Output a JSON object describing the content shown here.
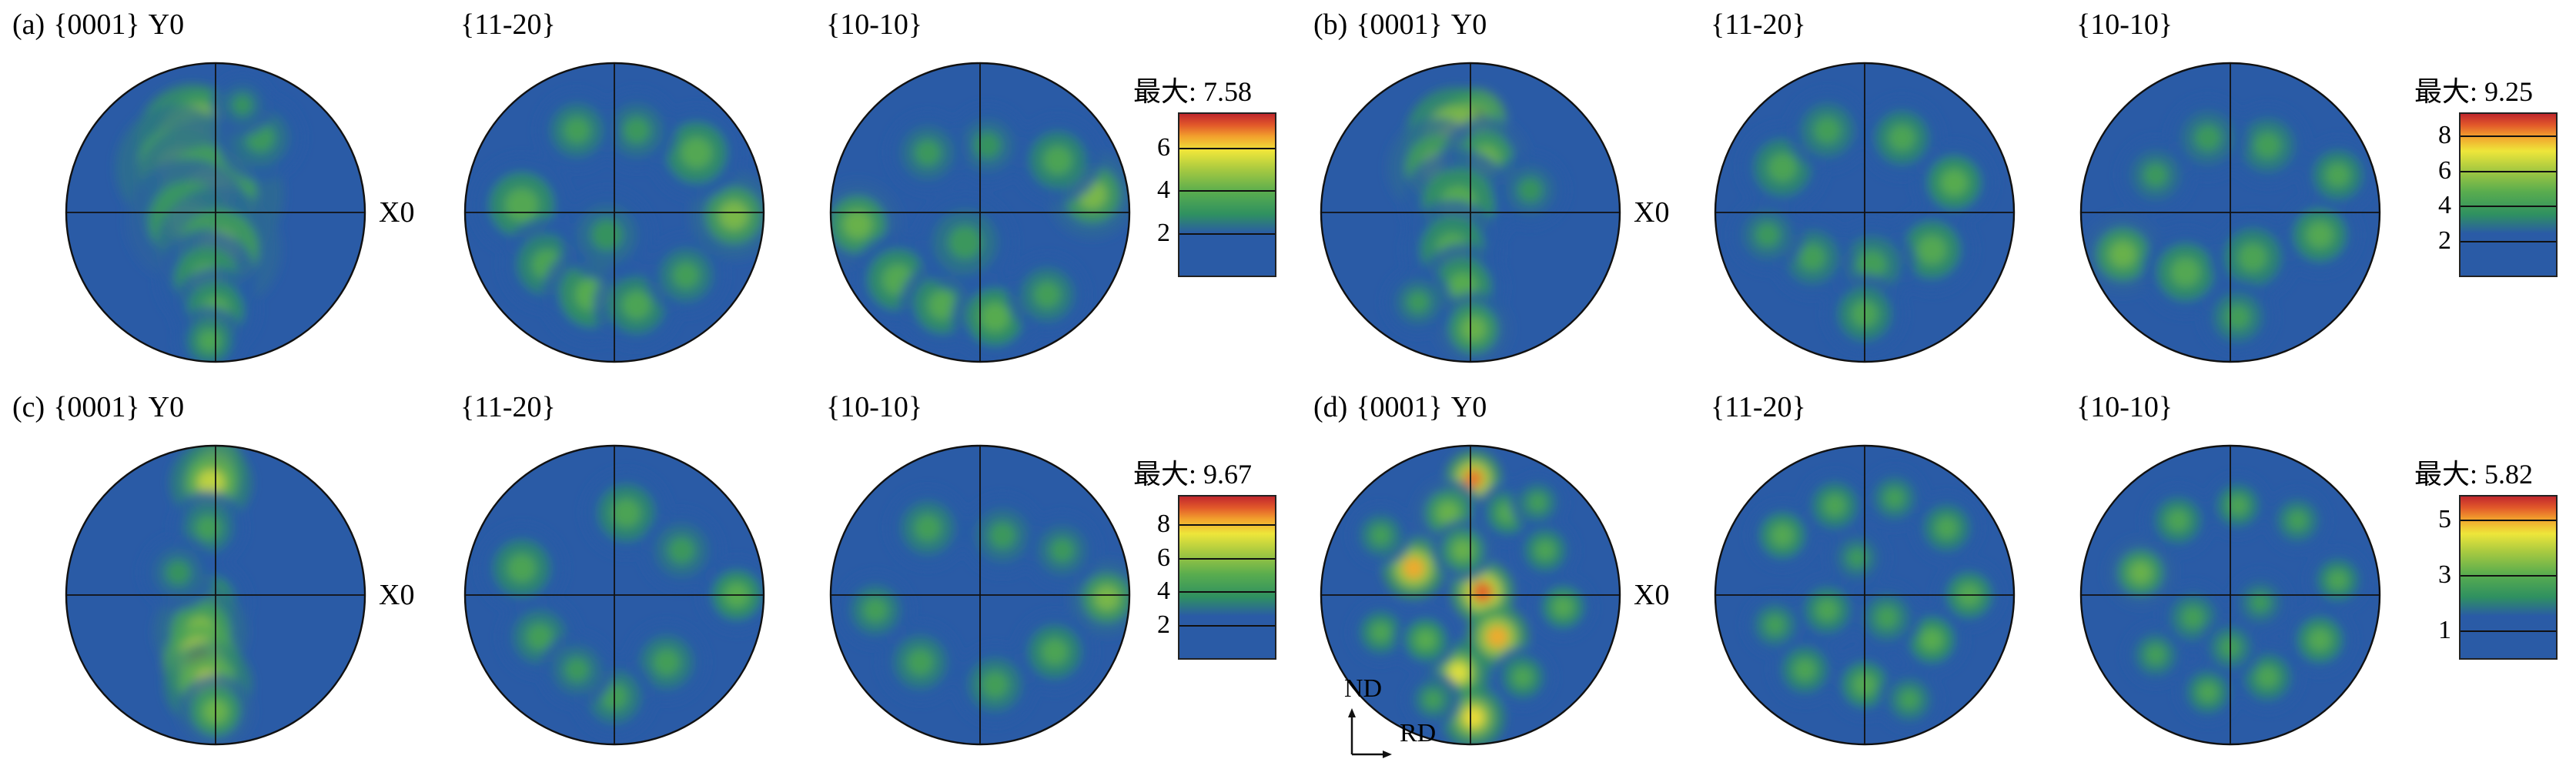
{
  "chart_data": {
    "type": "heatmap",
    "subtype": "pole-figures",
    "background": "#2a5ba6",
    "colormap": [
      [
        0.0,
        "#2a5ba6"
      ],
      [
        0.26,
        "#2a5ba6"
      ],
      [
        0.38,
        "#2f9160"
      ],
      [
        0.52,
        "#5aad4e"
      ],
      [
        0.66,
        "#a9ca40"
      ],
      [
        0.77,
        "#eee63a"
      ],
      [
        0.86,
        "#f2a12d"
      ],
      [
        0.93,
        "#e2592a"
      ],
      [
        1.0,
        "#c1272d"
      ]
    ],
    "axes_indicator": {
      "vertical": "ND",
      "horizontal": "RD"
    },
    "panels": [
      {
        "label": "(a)",
        "y_axis_label": "Y0",
        "x_axis_label": "X0",
        "max_intensity": 7.58,
        "colorbar": {
          "max_label": "最大: 7.58",
          "max": 7.58,
          "ticks": [
            6,
            4,
            2
          ]
        },
        "figures": [
          {
            "title": "{0001}",
            "hotspots": [
              [
                -0.1,
                -0.6,
                0.1,
                1.0
              ],
              [
                -0.15,
                -0.48,
                0.18,
                0.8
              ],
              [
                -0.25,
                -0.3,
                0.2,
                0.62
              ],
              [
                -0.05,
                -0.12,
                0.24,
                0.6
              ],
              [
                -0.18,
                0.06,
                0.2,
                0.55
              ],
              [
                0.02,
                0.25,
                0.2,
                0.58
              ],
              [
                -0.06,
                0.45,
                0.16,
                0.52
              ],
              [
                0.0,
                0.66,
                0.14,
                0.5
              ],
              [
                -0.04,
                0.86,
                0.11,
                0.48
              ],
              [
                0.3,
                -0.5,
                0.14,
                0.42
              ],
              [
                0.18,
                -0.72,
                0.1,
                0.4
              ]
            ]
          },
          {
            "title": "{11-20}",
            "hotspots": [
              [
                -0.62,
                -0.05,
                0.16,
                0.5
              ],
              [
                -0.45,
                0.35,
                0.15,
                0.48
              ],
              [
                -0.15,
                0.55,
                0.16,
                0.52
              ],
              [
                0.15,
                0.62,
                0.14,
                0.48
              ],
              [
                0.48,
                0.42,
                0.13,
                0.45
              ],
              [
                0.8,
                0.02,
                0.14,
                0.58
              ],
              [
                0.55,
                -0.4,
                0.15,
                0.5
              ],
              [
                0.15,
                -0.55,
                0.13,
                0.42
              ],
              [
                -0.25,
                -0.55,
                0.13,
                0.45
              ],
              [
                -0.05,
                0.15,
                0.15,
                0.4
              ]
            ]
          },
          {
            "title": "{10-10}",
            "hotspots": [
              [
                -0.82,
                0.08,
                0.14,
                0.55
              ],
              [
                -0.55,
                0.45,
                0.15,
                0.5
              ],
              [
                -0.25,
                0.62,
                0.14,
                0.5
              ],
              [
                0.1,
                0.7,
                0.14,
                0.52
              ],
              [
                0.45,
                0.55,
                0.13,
                0.45
              ],
              [
                0.75,
                -0.12,
                0.14,
                0.58
              ],
              [
                0.52,
                -0.35,
                0.14,
                0.48
              ],
              [
                0.05,
                -0.45,
                0.13,
                0.4
              ],
              [
                -0.35,
                -0.4,
                0.13,
                0.42
              ],
              [
                -0.1,
                0.2,
                0.16,
                0.42
              ]
            ]
          }
        ]
      },
      {
        "label": "(b)",
        "y_axis_label": "Y0",
        "x_axis_label": "X0",
        "max_intensity": 9.25,
        "colorbar": {
          "max_label": "最大: 9.25",
          "max": 9.25,
          "ticks": [
            8,
            6,
            4,
            2
          ]
        },
        "figures": [
          {
            "title": "{0001}",
            "hotspots": [
              [
                0.03,
                -0.62,
                0.1,
                1.0
              ],
              [
                -0.1,
                -0.5,
                0.16,
                0.78
              ],
              [
                -0.22,
                -0.3,
                0.16,
                0.58
              ],
              [
                0.1,
                -0.35,
                0.14,
                0.55
              ],
              [
                -0.08,
                -0.05,
                0.18,
                0.52
              ],
              [
                -0.12,
                0.25,
                0.16,
                0.5
              ],
              [
                -0.05,
                0.5,
                0.14,
                0.52
              ],
              [
                0.02,
                0.78,
                0.12,
                0.55
              ],
              [
                -0.35,
                0.6,
                0.11,
                0.42
              ],
              [
                0.4,
                -0.15,
                0.12,
                0.4
              ]
            ]
          },
          {
            "title": "{11-20}",
            "hotspots": [
              [
                -0.55,
                -0.3,
                0.14,
                0.48
              ],
              [
                -0.25,
                -0.55,
                0.13,
                0.45
              ],
              [
                0.25,
                -0.5,
                0.13,
                0.48
              ],
              [
                0.6,
                -0.2,
                0.13,
                0.52
              ],
              [
                0.45,
                0.25,
                0.14,
                0.5
              ],
              [
                0.05,
                0.35,
                0.14,
                0.45
              ],
              [
                -0.35,
                0.3,
                0.13,
                0.45
              ],
              [
                0.0,
                0.68,
                0.13,
                0.48
              ],
              [
                -0.65,
                0.15,
                0.12,
                0.42
              ]
            ]
          },
          {
            "title": "{10-10}",
            "hotspots": [
              [
                -0.72,
                0.28,
                0.13,
                0.55
              ],
              [
                -0.3,
                0.4,
                0.14,
                0.5
              ],
              [
                0.15,
                0.3,
                0.14,
                0.48
              ],
              [
                0.6,
                0.15,
                0.13,
                0.5
              ],
              [
                0.72,
                -0.25,
                0.12,
                0.48
              ],
              [
                0.25,
                -0.45,
                0.13,
                0.45
              ],
              [
                -0.15,
                -0.5,
                0.13,
                0.42
              ],
              [
                -0.5,
                -0.25,
                0.12,
                0.42
              ],
              [
                0.05,
                0.7,
                0.12,
                0.45
              ]
            ]
          }
        ]
      },
      {
        "label": "(c)",
        "y_axis_label": "Y0",
        "x_axis_label": "X0",
        "max_intensity": 9.67,
        "colorbar": {
          "max_label": "最大: 9.67",
          "max": 9.67,
          "ticks": [
            8,
            6,
            4,
            2
          ]
        },
        "figures": [
          {
            "title": "{0001}",
            "hotspots": [
              [
                0.0,
                -0.86,
                0.09,
                0.95
              ],
              [
                -0.03,
                -0.75,
                0.13,
                0.7
              ],
              [
                -0.05,
                -0.45,
                0.12,
                0.45
              ],
              [
                -0.06,
                0.05,
                0.14,
                0.5
              ],
              [
                -0.1,
                0.25,
                0.15,
                0.6
              ],
              [
                -0.1,
                0.45,
                0.12,
                0.95
              ],
              [
                -0.05,
                0.6,
                0.14,
                0.7
              ],
              [
                0.0,
                0.78,
                0.12,
                0.55
              ],
              [
                -0.25,
                -0.15,
                0.12,
                0.4
              ]
            ]
          },
          {
            "title": "{11-20}",
            "hotspots": [
              [
                -0.62,
                -0.18,
                0.14,
                0.48
              ],
              [
                -0.5,
                0.28,
                0.13,
                0.45
              ],
              [
                0.08,
                -0.55,
                0.14,
                0.48
              ],
              [
                0.45,
                -0.3,
                0.13,
                0.42
              ],
              [
                0.82,
                0.0,
                0.12,
                0.52
              ],
              [
                0.35,
                0.45,
                0.13,
                0.45
              ],
              [
                0.0,
                0.68,
                0.13,
                0.45
              ],
              [
                -0.25,
                0.5,
                0.12,
                0.42
              ]
            ]
          },
          {
            "title": "{10-10}",
            "hotspots": [
              [
                0.85,
                0.02,
                0.12,
                0.58
              ],
              [
                0.5,
                0.38,
                0.13,
                0.48
              ],
              [
                0.1,
                0.6,
                0.13,
                0.45
              ],
              [
                -0.4,
                0.45,
                0.13,
                0.45
              ],
              [
                -0.7,
                0.1,
                0.12,
                0.45
              ],
              [
                -0.35,
                -0.45,
                0.13,
                0.45
              ],
              [
                0.15,
                -0.4,
                0.13,
                0.42
              ],
              [
                0.55,
                -0.3,
                0.12,
                0.42
              ]
            ]
          }
        ]
      },
      {
        "label": "(d)",
        "y_axis_label": "Y0",
        "x_axis_label": "X0",
        "max_intensity": 5.82,
        "colorbar": {
          "max_label": "最大: 5.82",
          "max": 5.82,
          "ticks": [
            5,
            3,
            1
          ]
        },
        "figures": [
          {
            "title": "{0001}",
            "hotspots": [
              [
                0.02,
                -0.78,
                0.09,
                0.9
              ],
              [
                -0.15,
                -0.55,
                0.11,
                0.55
              ],
              [
                0.25,
                -0.55,
                0.1,
                0.5
              ],
              [
                -0.38,
                -0.18,
                0.1,
                0.85
              ],
              [
                0.08,
                -0.02,
                0.1,
                0.92
              ],
              [
                0.18,
                0.28,
                0.1,
                0.85
              ],
              [
                -0.08,
                0.52,
                0.1,
                0.75
              ],
              [
                0.02,
                0.82,
                0.1,
                0.78
              ],
              [
                -0.6,
                -0.4,
                0.1,
                0.45
              ],
              [
                0.5,
                -0.3,
                0.1,
                0.48
              ],
              [
                0.62,
                0.08,
                0.1,
                0.5
              ],
              [
                -0.6,
                0.25,
                0.1,
                0.48
              ],
              [
                -0.3,
                0.3,
                0.1,
                0.52
              ],
              [
                0.35,
                0.55,
                0.1,
                0.48
              ],
              [
                -0.25,
                0.7,
                0.09,
                0.45
              ],
              [
                0.45,
                -0.62,
                0.09,
                0.45
              ],
              [
                -0.05,
                -0.3,
                0.1,
                0.55
              ]
            ]
          },
          {
            "title": "{11-20}",
            "hotspots": [
              [
                -0.55,
                -0.4,
                0.11,
                0.5
              ],
              [
                -0.2,
                -0.6,
                0.11,
                0.48
              ],
              [
                0.2,
                -0.65,
                0.1,
                0.45
              ],
              [
                0.55,
                -0.45,
                0.11,
                0.48
              ],
              [
                0.7,
                0.0,
                0.11,
                0.5
              ],
              [
                0.45,
                0.3,
                0.11,
                0.52
              ],
              [
                0.15,
                0.15,
                0.11,
                0.45
              ],
              [
                -0.25,
                0.1,
                0.11,
                0.48
              ],
              [
                -0.6,
                0.2,
                0.1,
                0.45
              ],
              [
                -0.4,
                0.5,
                0.11,
                0.48
              ],
              [
                0.0,
                0.6,
                0.11,
                0.5
              ],
              [
                0.3,
                0.7,
                0.1,
                0.45
              ],
              [
                -0.05,
                -0.25,
                0.1,
                0.42
              ]
            ]
          },
          {
            "title": "{10-10}",
            "hotspots": [
              [
                -0.6,
                -0.15,
                0.11,
                0.55
              ],
              [
                -0.35,
                -0.5,
                0.11,
                0.48
              ],
              [
                0.05,
                -0.6,
                0.1,
                0.48
              ],
              [
                0.45,
                -0.5,
                0.1,
                0.45
              ],
              [
                0.72,
                -0.1,
                0.1,
                0.48
              ],
              [
                0.6,
                0.3,
                0.11,
                0.5
              ],
              [
                0.25,
                0.55,
                0.11,
                0.48
              ],
              [
                -0.15,
                0.65,
                0.1,
                0.48
              ],
              [
                -0.5,
                0.4,
                0.1,
                0.45
              ],
              [
                -0.25,
                0.15,
                0.11,
                0.45
              ],
              [
                0.2,
                0.05,
                0.1,
                0.42
              ],
              [
                0.0,
                0.35,
                0.1,
                0.45
              ]
            ]
          }
        ]
      }
    ]
  }
}
